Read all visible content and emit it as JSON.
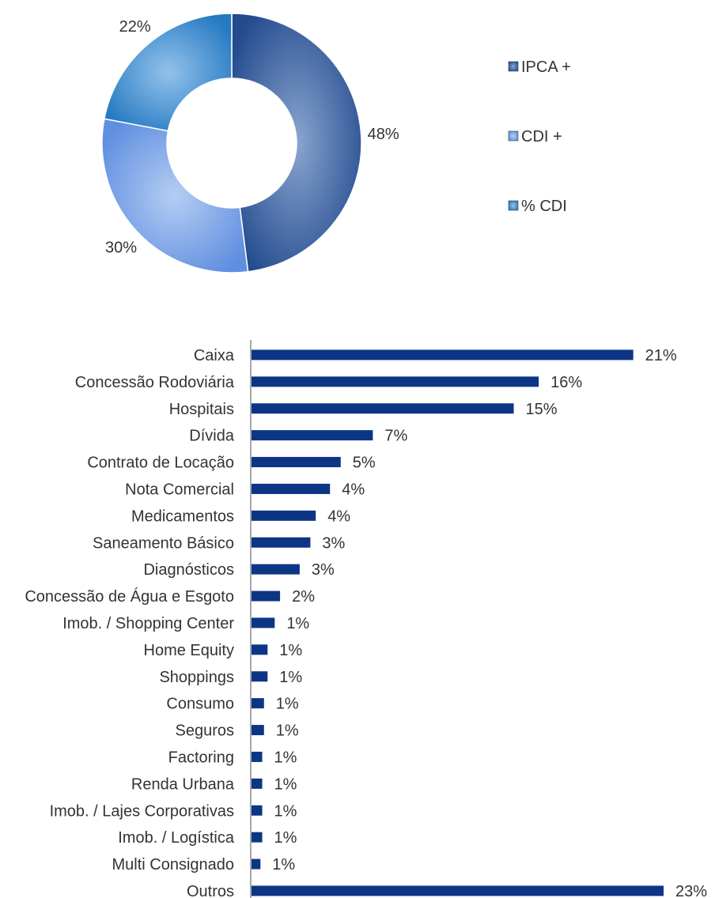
{
  "chart_data": [
    {
      "type": "pie",
      "variant": "donut",
      "title": "",
      "categories": [
        "IPCA +",
        "CDI +",
        "% CDI"
      ],
      "values": [
        48,
        30,
        22
      ],
      "labels": [
        "48%",
        "30%",
        "22%"
      ],
      "legend": "right",
      "colors": [
        "#3a5f9c",
        "#7ea6e8",
        "#3f8fd1"
      ]
    },
    {
      "type": "bar",
      "orientation": "horizontal",
      "title": "",
      "xlabel": "",
      "ylabel": "",
      "categories": [
        "Caixa",
        "Concessão Rodoviária",
        "Hospitais",
        "Dívida",
        "Contrato de Locação",
        "Nota Comercial",
        "Medicamentos",
        "Saneamento Básico",
        "Diagnósticos",
        "Concessão de Água e Esgoto",
        "Imob. / Shopping Center",
        "Home Equity",
        "Shoppings",
        "Consumo",
        "Seguros",
        "Factoring",
        "Renda Urbana",
        "Imob. / Lajes Corporativas",
        "Imob. / Logística",
        "Multi Consignado",
        "Outros"
      ],
      "values": [
        21.4,
        16.1,
        14.7,
        6.8,
        5.0,
        4.4,
        3.6,
        3.3,
        2.7,
        1.6,
        1.3,
        0.9,
        0.9,
        0.7,
        0.7,
        0.6,
        0.6,
        0.6,
        0.6,
        0.5,
        23.1
      ],
      "labels": [
        "21%",
        "16%",
        "15%",
        "7%",
        "5%",
        "4%",
        "4%",
        "3%",
        "3%",
        "2%",
        "1%",
        "1%",
        "1%",
        "1%",
        "1%",
        "1%",
        "1%",
        "1%",
        "1%",
        "1%",
        "23%"
      ],
      "color": "#0d3585",
      "xlim": [
        0,
        23.1
      ],
      "grid": false
    }
  ]
}
